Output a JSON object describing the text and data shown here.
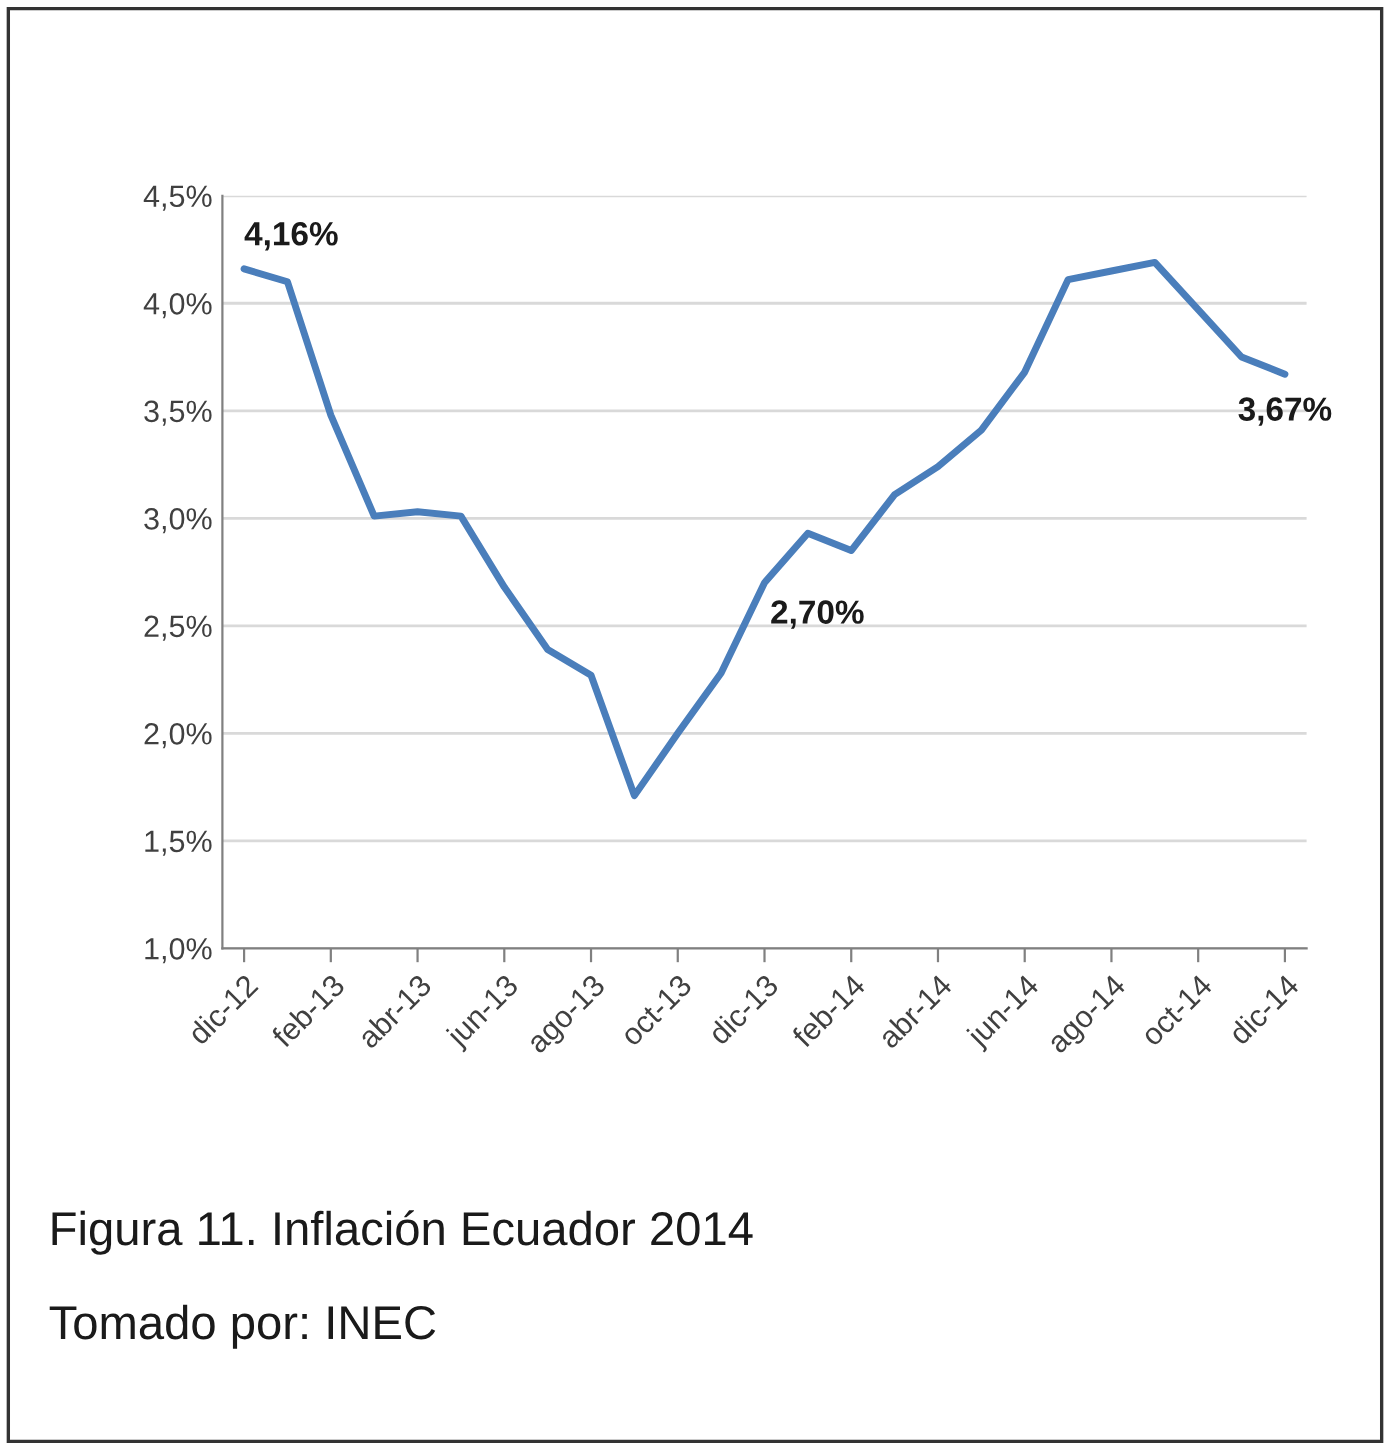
{
  "chart_data": {
    "type": "line",
    "categories": [
      "dic-12",
      null,
      "feb-13",
      null,
      "abr-13",
      null,
      "jun-13",
      null,
      "ago-13",
      null,
      "oct-13",
      null,
      "dic-13",
      null,
      "feb-14",
      null,
      "abr-14",
      null,
      "jun-14",
      null,
      "ago-14",
      null,
      "oct-14",
      null,
      "dic-14"
    ],
    "series": [
      {
        "color": "#4a7ebb",
        "values": [
          4.16,
          4.1,
          3.48,
          3.01,
          3.03,
          3.01,
          2.68,
          2.39,
          2.27,
          1.71,
          2.0,
          2.28,
          2.7,
          2.93,
          2.85,
          3.11,
          3.24,
          3.41,
          3.68,
          4.11,
          4.15,
          4.19,
          3.97,
          3.75,
          3.67
        ]
      }
    ],
    "ylim": [
      1.0,
      4.5
    ],
    "yticks": [
      {
        "value": 1.0,
        "label": "1,0%"
      },
      {
        "value": 1.5,
        "label": "1,5%"
      },
      {
        "value": 2.0,
        "label": "2,0%"
      },
      {
        "value": 2.5,
        "label": "2,5%"
      },
      {
        "value": 3.0,
        "label": "3,0%"
      },
      {
        "value": 3.5,
        "label": "3,5%"
      },
      {
        "value": 4.0,
        "label": "4,0%"
      },
      {
        "value": 4.5,
        "label": "4,5%"
      }
    ],
    "grid": "y",
    "marker": "none",
    "line_style": "solid",
    "legend": false,
    "annotations": [
      {
        "text": "4,16%",
        "x": "dic-12",
        "y": 4.16
      },
      {
        "text": "2,70%",
        "x": "dic-13",
        "y": 2.7
      },
      {
        "text": "3,67%",
        "x": "dic-14",
        "y": 3.67
      },
      "Figura 11. Inflación Ecuador 2014",
      "Tomado por: INEC"
    ]
  }
}
